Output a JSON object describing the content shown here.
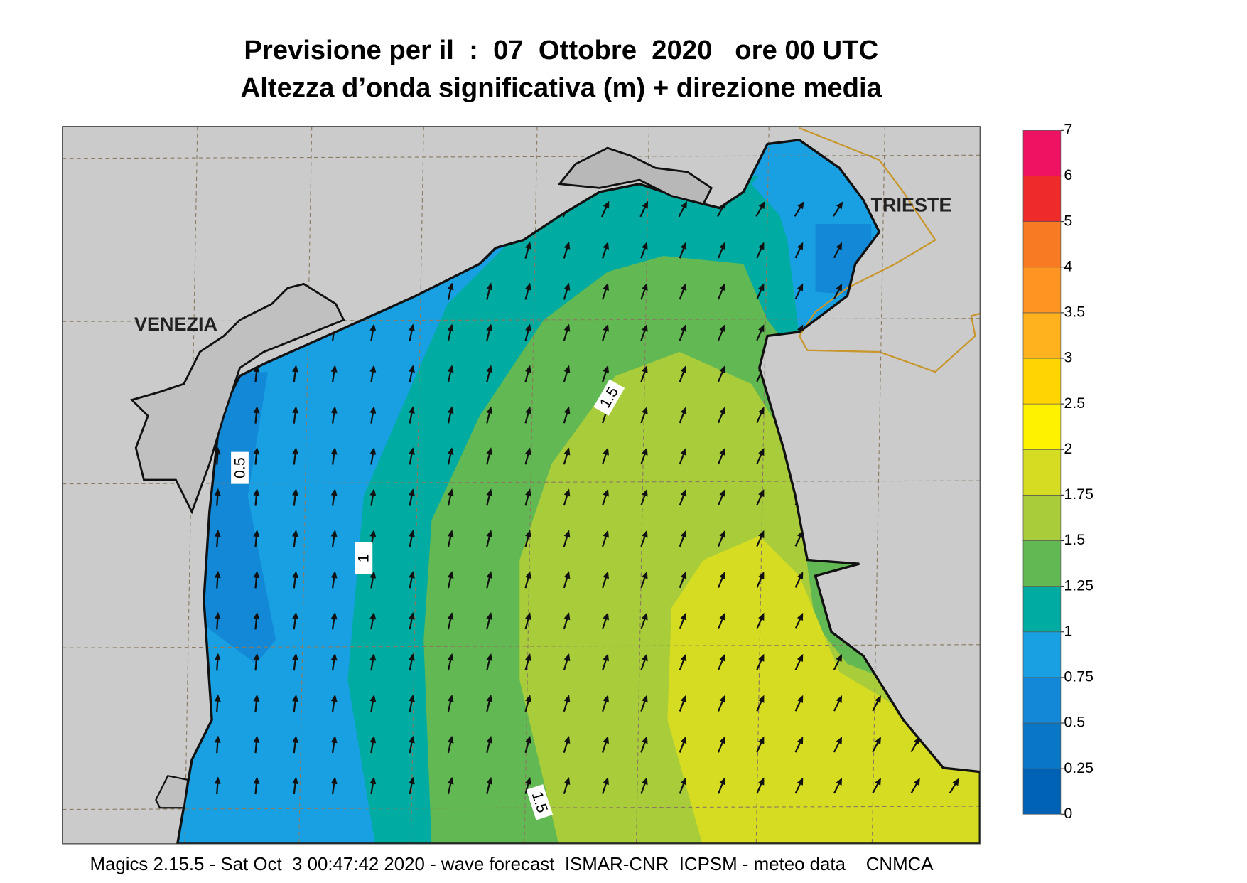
{
  "header": {
    "title": "Previsione per il  :  07  Ottobre  2020   ore 00 UTC",
    "subtitle": "Altezza d’onda significativa (m) + direzione media"
  },
  "map": {
    "places": [
      "VENEZIA",
      "TRIESTE"
    ],
    "contour_labels": [
      "0.5",
      "1",
      "1.5",
      "1.5"
    ]
  },
  "colorbar": {
    "levels": [
      0,
      0.25,
      0.5,
      0.75,
      1,
      1.25,
      1.5,
      1.75,
      2,
      2.5,
      3,
      3.5,
      4,
      5,
      6,
      7
    ],
    "colors": [
      "#0062b4",
      "#0a76c6",
      "#1288d6",
      "#18a0e2",
      "#00aca2",
      "#62b852",
      "#a8cc3a",
      "#d6dc22",
      "#fff200",
      "#ffd400",
      "#ffb21e",
      "#ff9422",
      "#f87a22",
      "#ee2a2a",
      "#ee1262"
    ]
  },
  "footer": "Magics 2.15.5 - Sat Oct  3 00:47:42 2020 - wave forecast  ISMAR-CNR  ICPSM - meteo data    CNMCA"
}
